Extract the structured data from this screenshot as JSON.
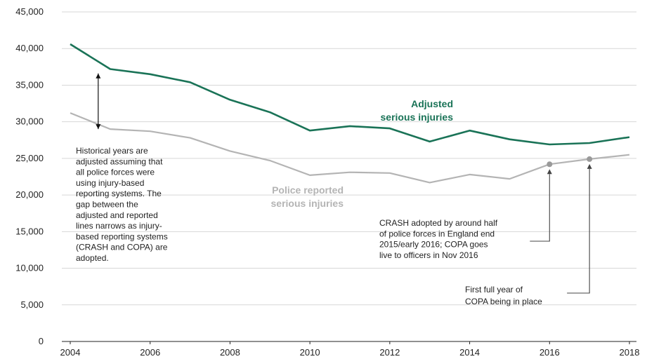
{
  "chart_data": {
    "type": "line",
    "x": [
      2004,
      2005,
      2006,
      2007,
      2008,
      2009,
      2010,
      2011,
      2012,
      2013,
      2014,
      2015,
      2016,
      2017,
      2018
    ],
    "series": [
      {
        "name": "Adjusted serious injuries",
        "label_lines": [
          "Adjusted",
          "serious injuries"
        ],
        "color": "#1a7357",
        "values": [
          40600,
          37200,
          36500,
          35400,
          33000,
          31300,
          28800,
          29400,
          29100,
          27300,
          28800,
          27600,
          26900,
          27100,
          27900
        ]
      },
      {
        "name": "Police reported serious injuries",
        "label_lines": [
          "Police reported",
          "serious injuries"
        ],
        "color": "#b4b4b4",
        "values": [
          31200,
          29000,
          28700,
          27800,
          26000,
          24700,
          22700,
          23100,
          23000,
          21700,
          22800,
          22200,
          24200,
          24900,
          25500
        ]
      }
    ],
    "x_ticks": [
      "2004",
      "2006",
      "2008",
      "2010",
      "2012",
      "2014",
      "2016",
      "2018"
    ],
    "y_ticks": [
      "0",
      "5,000",
      "10,000",
      "15,000",
      "20,000",
      "25,000",
      "30,000",
      "35,000",
      "40,000",
      "45,000"
    ],
    "ylim": [
      0,
      45000
    ],
    "xlim": [
      2004,
      2018
    ],
    "grid": true,
    "markers": [
      {
        "series": 1,
        "x": 2016
      },
      {
        "series": 1,
        "x": 2017
      }
    ],
    "annotations": {
      "gap_note": [
        "Historical years are",
        "adjusted assuming that",
        "all police forces were",
        "using injury-based",
        "reporting systems. The",
        "gap between the",
        "adjusted and reported",
        "lines narrows as injury-",
        "based reporting systems",
        "(CRASH and COPA) are",
        "adopted."
      ],
      "crash_note": [
        "CRASH adopted by around half",
        "of police forces in England end",
        "2015/early 2016; COPA goes",
        "live to officers in Nov 2016"
      ],
      "copa_note": [
        "First full year of",
        "COPA being in place"
      ]
    }
  }
}
